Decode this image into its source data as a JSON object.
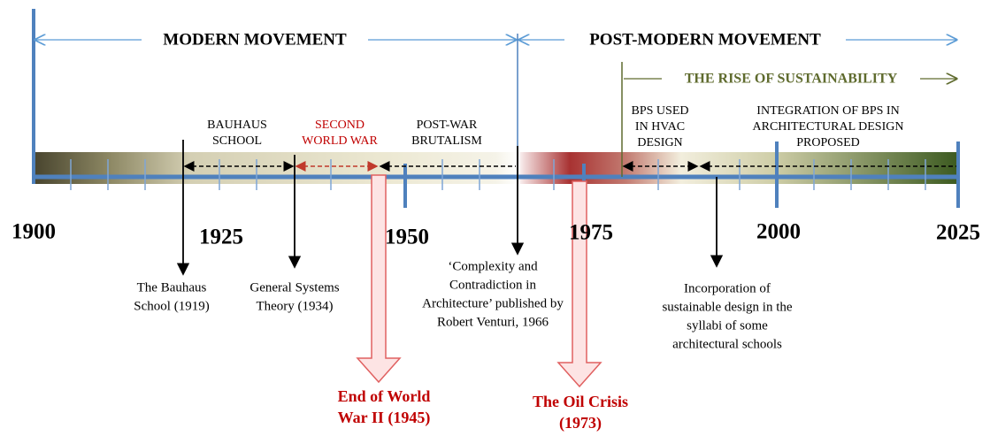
{
  "movements": [
    {
      "label": "MODERN MOVEMENT"
    },
    {
      "label": "POST-MODERN MOVEMENT"
    },
    {
      "label": "THE RISE OF SUSTAINABILITY"
    }
  ],
  "eras": [
    {
      "lines": [
        "BAUHAUS",
        "SCHOOL"
      ]
    },
    {
      "lines": [
        "SECOND",
        "WORLD WAR"
      ]
    },
    {
      "lines": [
        "POST-WAR",
        "BRUTALISM"
      ]
    },
    {
      "lines": [
        "BPS USED",
        "IN HVAC",
        "DESIGN"
      ]
    },
    {
      "lines": [
        "INTEGRATION OF BPS IN",
        "ARCHITECTURAL  DESIGN",
        "PROPOSED"
      ]
    }
  ],
  "years": [
    "1900",
    "1925",
    "1950",
    "1975",
    "2000",
    "2025"
  ],
  "events": [
    {
      "lines": [
        "The Bauhaus",
        "School (1919)"
      ]
    },
    {
      "lines": [
        "General Systems",
        "Theory (1934)"
      ]
    },
    {
      "lines": [
        "‘Complexity and",
        "Contradiction in",
        "Architecture’ published by",
        "Robert Venturi, 1966"
      ]
    },
    {
      "lines": [
        "Incorporation of",
        "sustainable design in the",
        "syllabi of some",
        "architectural schools"
      ]
    }
  ],
  "highlights": [
    {
      "lines": [
        "End of World",
        "War II (1945)"
      ]
    },
    {
      "lines": [
        "The Oil Crisis",
        "(1973)"
      ]
    }
  ]
}
